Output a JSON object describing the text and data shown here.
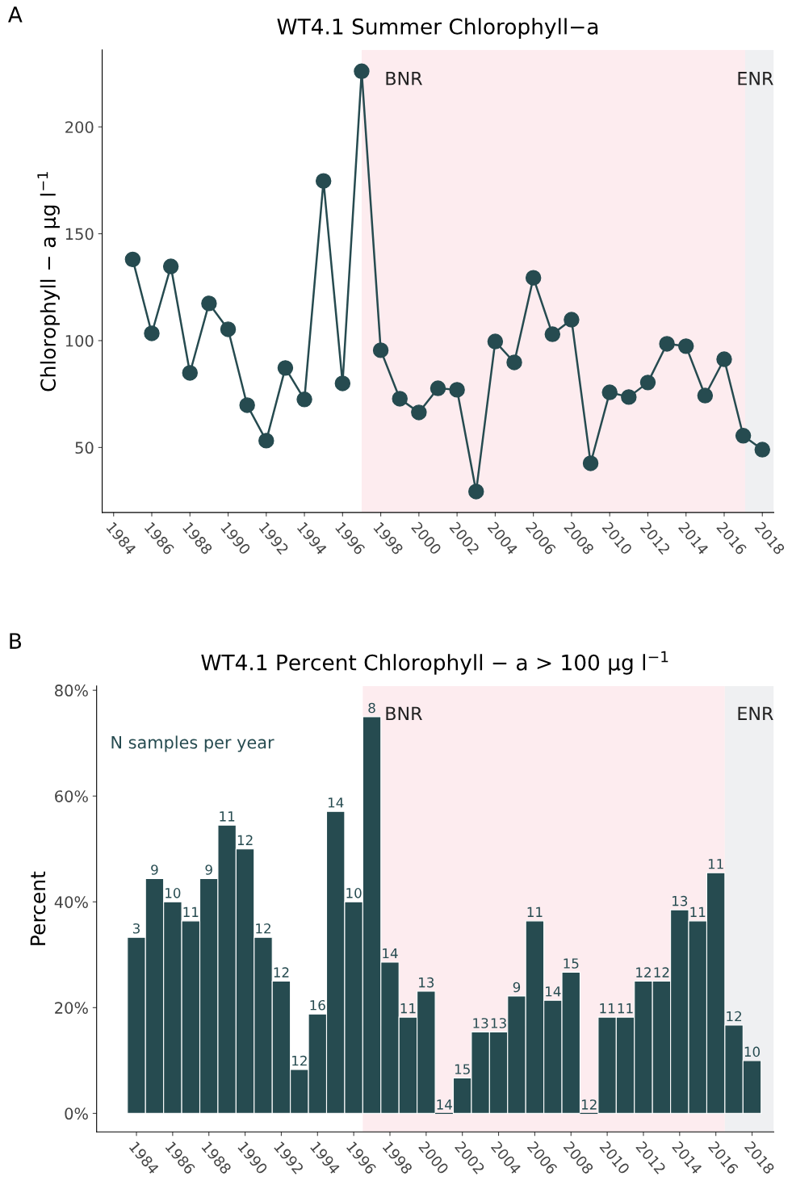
{
  "chart_data": [
    {
      "type": "line",
      "title": "WT4.1 Summer Chlorophyll−a",
      "ylabel": "Chlorophyll − a µg l$^{−1}$",
      "x": [
        1985,
        1986,
        1987,
        1988,
        1989,
        1990,
        1991,
        1992,
        1993,
        1994,
        1995,
        1996,
        1997,
        1998,
        1999,
        2000,
        2001,
        2002,
        2003,
        2004,
        2005,
        2006,
        2007,
        2008,
        2009,
        2010,
        2011,
        2012,
        2013,
        2014,
        2015,
        2016,
        2017,
        2018
      ],
      "series": [
        {
          "color": "#264b50",
          "values": [
            138,
            103.4,
            134.7,
            84.9,
            117.4,
            105.3,
            69.8,
            53.2,
            87.2,
            72.5,
            174.7,
            80,
            226,
            95.5,
            72.8,
            66.4,
            77.7,
            77,
            29.4,
            99.6,
            89.8,
            129.4,
            103,
            109.8,
            42.6,
            75.8,
            73.6,
            80.4,
            98.5,
            97.4,
            74.3,
            91.3,
            55.5,
            49
          ]
        }
      ],
      "marker": "circle",
      "line_style": "solid",
      "grid": false,
      "legend": false,
      "xlim": [
        1983.4,
        2018.6
      ],
      "xticks": [
        1984,
        1986,
        1988,
        1990,
        1992,
        1994,
        1996,
        1998,
        2000,
        2002,
        2004,
        2006,
        2008,
        2010,
        2012,
        2014,
        2016,
        2018
      ],
      "ylim": [
        19.6,
        236
      ],
      "yticks": [
        50,
        100,
        150,
        200
      ],
      "bands": [
        {
          "axis": "x",
          "from": 1997,
          "to": 2017.1,
          "label": "BNR",
          "color": "#fdecef"
        },
        {
          "axis": "x",
          "from": 2017.1,
          "to": 2018.6,
          "label": "ENR",
          "color": "#eff0f2"
        }
      ],
      "annotations": [
        "A"
      ]
    },
    {
      "type": "bar",
      "title": "WT4.1 Percent Chlorophyll − a > 100 µg l$^{−1}$",
      "ylabel": "Percent",
      "x": [
        1984,
        1985,
        1986,
        1987,
        1988,
        1989,
        1990,
        1991,
        1992,
        1993,
        1994,
        1995,
        1996,
        1997,
        1998,
        1999,
        2000,
        2001,
        2002,
        2003,
        2004,
        2005,
        2006,
        2007,
        2008,
        2009,
        2010,
        2011,
        2012,
        2013,
        2014,
        2015,
        2016,
        2017,
        2018
      ],
      "values": [
        33.3,
        44.4,
        40,
        36.4,
        44.4,
        54.5,
        50,
        33.3,
        25,
        8.3,
        18.8,
        57.1,
        40,
        75,
        28.6,
        18.2,
        23.1,
        0,
        6.7,
        15.4,
        15.4,
        22.2,
        36.4,
        21.4,
        26.7,
        0,
        18.2,
        18.2,
        25,
        25,
        38.5,
        36.4,
        45.5,
        16.7,
        10
      ],
      "color": "#264b50",
      "grid": false,
      "legend": false,
      "xlim": [
        1981.8,
        2019.2
      ],
      "xticks": [
        1984,
        1986,
        1988,
        1990,
        1992,
        1994,
        1996,
        1998,
        2000,
        2002,
        2004,
        2006,
        2008,
        2010,
        2012,
        2014,
        2016,
        2018
      ],
      "ylim": [
        -3.5,
        80.8
      ],
      "yticks": [
        {
          "value": 0,
          "label": "0%"
        },
        {
          "value": 20,
          "label": "20%"
        },
        {
          "value": 40,
          "label": "40%"
        },
        {
          "value": 60,
          "label": "60%"
        },
        {
          "value": 80,
          "label": "80%"
        }
      ],
      "bands": [
        {
          "axis": "x",
          "from": 1996.5,
          "to": 2016.5,
          "label": "BNR",
          "color": "#fdecef"
        },
        {
          "axis": "x",
          "from": 2016.5,
          "to": 2019.2,
          "label": "ENR",
          "color": "#eff0f2"
        }
      ],
      "annotations": [
        "B",
        "N samples per year",
        {
          "text": "3",
          "x": 1984,
          "y": 33.3
        },
        {
          "text": "9",
          "x": 1985,
          "y": 44.4
        },
        {
          "text": "10",
          "x": 1986,
          "y": 40
        },
        {
          "text": "11",
          "x": 1987,
          "y": 36.4
        },
        {
          "text": "9",
          "x": 1988,
          "y": 44.4
        },
        {
          "text": "11",
          "x": 1989,
          "y": 54.5
        },
        {
          "text": "12",
          "x": 1990,
          "y": 50
        },
        {
          "text": "12",
          "x": 1991,
          "y": 33.3
        },
        {
          "text": "12",
          "x": 1992,
          "y": 25
        },
        {
          "text": "12",
          "x": 1993,
          "y": 8.3
        },
        {
          "text": "16",
          "x": 1994,
          "y": 18.8
        },
        {
          "text": "14",
          "x": 1995,
          "y": 57.1
        },
        {
          "text": "10",
          "x": 1996,
          "y": 40
        },
        {
          "text": "8",
          "x": 1997,
          "y": 75
        },
        {
          "text": "14",
          "x": 1998,
          "y": 28.6
        },
        {
          "text": "11",
          "x": 1999,
          "y": 18.2
        },
        {
          "text": "13",
          "x": 2000,
          "y": 23.1
        },
        {
          "text": "14",
          "x": 2001,
          "y": 0
        },
        {
          "text": "15",
          "x": 2002,
          "y": 6.7
        },
        {
          "text": "13",
          "x": 2003,
          "y": 15.4
        },
        {
          "text": "13",
          "x": 2004,
          "y": 15.4
        },
        {
          "text": "9",
          "x": 2005,
          "y": 22.2
        },
        {
          "text": "11",
          "x": 2006,
          "y": 36.4
        },
        {
          "text": "14",
          "x": 2007,
          "y": 21.4
        },
        {
          "text": "15",
          "x": 2008,
          "y": 26.7
        },
        {
          "text": "12",
          "x": 2009,
          "y": 0
        },
        {
          "text": "11",
          "x": 2010,
          "y": 18.2
        },
        {
          "text": "11",
          "x": 2011,
          "y": 18.2
        },
        {
          "text": "12",
          "x": 2012,
          "y": 25
        },
        {
          "text": "12",
          "x": 2013,
          "y": 25
        },
        {
          "text": "13",
          "x": 2014,
          "y": 38.5
        },
        {
          "text": "11",
          "x": 2015,
          "y": 36.4
        },
        {
          "text": "11",
          "x": 2016,
          "y": 45.5
        },
        {
          "text": "12",
          "x": 2017,
          "y": 16.7
        },
        {
          "text": "10",
          "x": 2018,
          "y": 10
        }
      ]
    }
  ]
}
